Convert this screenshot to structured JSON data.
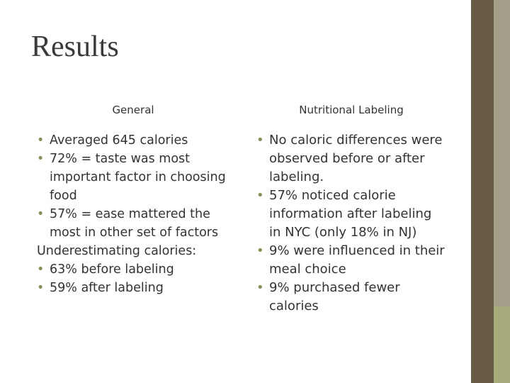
{
  "title": "Results",
  "columns": [
    {
      "heading": "General",
      "items": [
        {
          "text": "Averaged 645 calories",
          "bullet": true
        },
        {
          "text": "72% = taste was most important factor in choosing food",
          "bullet": true
        },
        {
          "text": "57% = ease mattered the most in other set of factors",
          "bullet": true
        },
        {
          "text": "Underestimating calories:",
          "bullet": false
        },
        {
          "text": "63% before labeling",
          "bullet": true
        },
        {
          "text": "59% after labeling",
          "bullet": true
        }
      ]
    },
    {
      "heading": "Nutritional Labeling",
      "items": [
        {
          "text": "No caloric differences were observed before or after labeling.",
          "bullet": true
        },
        {
          "text": "57% noticed calorie information after labeling in NYC (only 18% in NJ)",
          "bullet": true
        },
        {
          "text": "9% were influenced in their meal choice",
          "bullet": true
        },
        {
          "text": "9% purchased fewer calories",
          "bullet": true
        }
      ]
    }
  ]
}
